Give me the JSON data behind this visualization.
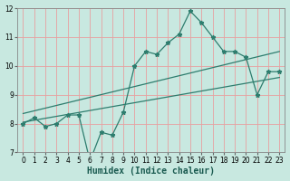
{
  "xlabel": "Humidex (Indice chaleur)",
  "x_values": [
    0,
    1,
    2,
    3,
    4,
    5,
    6,
    7,
    8,
    9,
    10,
    11,
    12,
    13,
    14,
    15,
    16,
    17,
    18,
    19,
    20,
    21,
    22,
    23
  ],
  "y_values": [
    8.0,
    8.2,
    7.9,
    8.0,
    8.3,
    8.3,
    6.7,
    7.7,
    7.6,
    8.4,
    10.0,
    10.5,
    10.4,
    10.8,
    11.1,
    11.9,
    11.5,
    11.0,
    10.5,
    10.5,
    10.3,
    9.0,
    9.8,
    9.8
  ],
  "line_color": "#2e7d6e",
  "bg_color": "#c8e8e0",
  "grid_color": "#e8a0a0",
  "ylim": [
    7,
    12
  ],
  "xlim": [
    -0.5,
    23.5
  ],
  "yticks": [
    7,
    8,
    9,
    10,
    11,
    12
  ],
  "xticks": [
    0,
    1,
    2,
    3,
    4,
    5,
    6,
    7,
    8,
    9,
    10,
    11,
    12,
    13,
    14,
    15,
    16,
    17,
    18,
    19,
    20,
    21,
    22,
    23
  ],
  "tick_fontsize": 5.5,
  "label_fontsize": 7,
  "trend1_start": 8.35,
  "trend1_end": 10.5,
  "trend2_start": 8.05,
  "trend2_end": 9.6
}
